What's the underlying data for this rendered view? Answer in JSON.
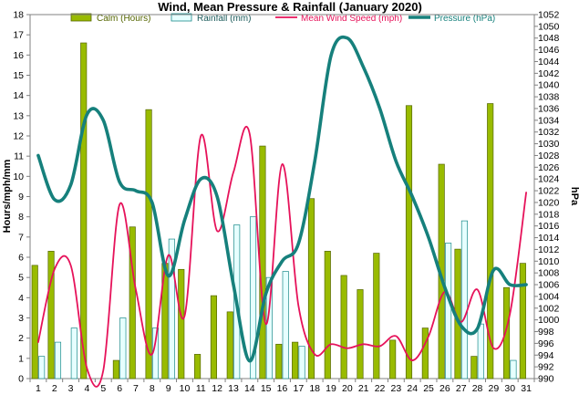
{
  "chart_data": {
    "type": "bar+line",
    "title": "Wind, Mean Pressure & Rainfall (January 2020)",
    "ylabel_left": "Hours/mph/mm",
    "ylabel_right": "hPa",
    "x": [
      1,
      2,
      3,
      4,
      5,
      6,
      7,
      8,
      9,
      10,
      11,
      12,
      13,
      14,
      15,
      16,
      17,
      18,
      19,
      20,
      21,
      22,
      23,
      24,
      25,
      26,
      27,
      28,
      29,
      30,
      31
    ],
    "x_labels": [
      "1",
      "2",
      "3",
      "4",
      "5",
      "6",
      "7",
      "8",
      "9",
      "10",
      "11",
      "12",
      "13",
      "14",
      "15",
      "16",
      "17",
      "18",
      "19",
      "20",
      "21",
      "22",
      "23",
      "24",
      "25",
      "26",
      "27",
      "28",
      "29",
      "30",
      "31"
    ],
    "ylim_left": [
      0,
      18
    ],
    "yticks_left": [
      "0",
      "1",
      "2",
      "3",
      "4",
      "5",
      "6",
      "7",
      "8",
      "9",
      "10",
      "11",
      "12",
      "13",
      "14",
      "15",
      "16",
      "17",
      "18"
    ],
    "ylim_right": [
      990,
      1052
    ],
    "yticks_right": [
      "990",
      "992",
      "994",
      "996",
      "998",
      "1000",
      "1002",
      "1004",
      "1006",
      "1008",
      "1010",
      "1012",
      "1014",
      "1016",
      "1018",
      "1020",
      "1022",
      "1024",
      "1026",
      "1028",
      "1030",
      "1032",
      "1034",
      "1036",
      "1038",
      "1040",
      "1042",
      "1044",
      "1046",
      "1048",
      "1050",
      "1052"
    ],
    "legend_position": "top",
    "grid": false,
    "series": [
      {
        "name": "Calm (Hours)",
        "kind": "bar",
        "axis": "left",
        "color": "#99bb00",
        "values": [
          5.6,
          6.3,
          0,
          16.6,
          0,
          0.9,
          7.5,
          13.3,
          5.7,
          5.4,
          1.2,
          4.1,
          3.3,
          0,
          11.5,
          1.7,
          1.8,
          8.9,
          6.3,
          5.1,
          4.4,
          6.2,
          1.9,
          13.5,
          2.5,
          10.6,
          6.4,
          1.1,
          13.6,
          4.5,
          5.7
        ]
      },
      {
        "name": "Rainfall (mm)",
        "kind": "bar",
        "axis": "left",
        "color": "#e6ffff",
        "values": [
          1.1,
          1.8,
          2.5,
          0,
          0,
          3.0,
          0,
          2.5,
          6.9,
          0,
          0,
          0,
          7.6,
          8.0,
          5.0,
          5.3,
          1.6,
          0,
          0,
          0,
          0,
          0,
          0,
          0,
          0,
          6.7,
          7.8,
          2.7,
          0,
          0.9,
          0
        ]
      },
      {
        "name": "Mean Wind Speed (mph)",
        "kind": "line",
        "axis": "left",
        "color": "#e6125a",
        "values": [
          1.8,
          5.4,
          5.6,
          0.5,
          0.4,
          8.6,
          4.4,
          1.2,
          6.1,
          3.1,
          12.0,
          7.3,
          10.2,
          12.1,
          2.7,
          10.6,
          3.6,
          1.2,
          1.7,
          1.5,
          1.7,
          1.6,
          2.1,
          0.9,
          2.1,
          4.3,
          2.8,
          4.4,
          1.5,
          3.2,
          9.2
        ]
      },
      {
        "name": "Pressure (hPa)",
        "kind": "line",
        "axis": "right",
        "color": "#16807c",
        "values": [
          1028,
          1020.5,
          1023,
          1035,
          1034,
          1023.5,
          1022,
          1020,
          1007.5,
          1017,
          1024,
          1021,
          1006,
          993,
          1004.5,
          1010,
          1013,
          1027,
          1045,
          1048,
          1043,
          1036,
          1027,
          1021,
          1014,
          1005.5,
          999,
          998.5,
          1008.5,
          1006,
          1006
        ]
      }
    ]
  }
}
